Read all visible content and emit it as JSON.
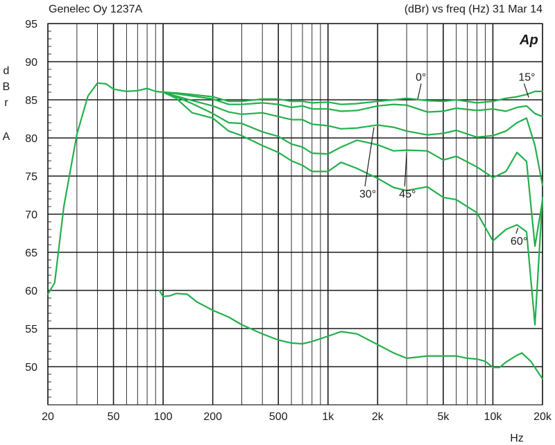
{
  "chart_data": {
    "type": "line",
    "title": "Genelec Oy 1237A",
    "subtitle": "(dBr) vs freq (Hz) 31 Mar 14",
    "logo_text": "Ap",
    "xlabel": "Hz",
    "ylabel": "dBrA",
    "ylabel_letters": [
      "d",
      "B",
      "r",
      "A"
    ],
    "x_scale": "log",
    "xlim": [
      20,
      20000
    ],
    "ylim": [
      45,
      95
    ],
    "grid": true,
    "x_major_ticks": [
      20,
      50,
      100,
      200,
      500,
      1000,
      2000,
      5000,
      10000,
      20000
    ],
    "x_tick_labels": [
      "20",
      "50",
      "100",
      "200",
      "500",
      "1k",
      "2k",
      "5k",
      "10k",
      "20k"
    ],
    "y_ticks": [
      50,
      55,
      60,
      65,
      70,
      75,
      80,
      85,
      90,
      95
    ],
    "y_tick_labels": [
      "50",
      "55",
      "60",
      "65",
      "70",
      "75",
      "80",
      "85",
      "90",
      "95"
    ],
    "line_color": "#22b04b",
    "series": [
      {
        "name": "0°",
        "x": [
          20,
          22,
          25,
          30,
          35,
          40,
          45,
          50,
          60,
          70,
          80,
          90,
          100,
          120,
          150,
          200,
          250,
          300,
          400,
          500,
          600,
          700,
          800,
          1000,
          1200,
          1500,
          2000,
          2500,
          3000,
          4000,
          5000,
          6000,
          8000,
          10000,
          12000,
          14000,
          16000,
          18000,
          20000
        ],
        "y": [
          59.5,
          61,
          71,
          80.5,
          85.5,
          87.2,
          87.1,
          86.4,
          86.1,
          86.2,
          86.5,
          86.1,
          86,
          85.9,
          85.7,
          85.4,
          84.8,
          84.8,
          85.1,
          85.1,
          84.8,
          84.8,
          84.6,
          84.7,
          84.4,
          84.5,
          84.8,
          85.0,
          85.2,
          84.9,
          84.8,
          85.0,
          84.6,
          84.8,
          85.2,
          85.4,
          85.7,
          86.1,
          86.1
        ]
      },
      {
        "name": "15°",
        "x": [
          100,
          120,
          150,
          200,
          250,
          300,
          400,
          500,
          600,
          700,
          800,
          1000,
          1200,
          1500,
          2000,
          2500,
          3000,
          4000,
          5000,
          6000,
          8000,
          10000,
          12000,
          14000,
          16000,
          18000,
          20000
        ],
        "y": [
          86,
          85.8,
          85.5,
          85.1,
          84.4,
          84.4,
          84.6,
          84.4,
          84.0,
          84.2,
          83.8,
          83.8,
          83.5,
          83.6,
          84.2,
          84.4,
          84.3,
          83.4,
          83.5,
          83.9,
          83.6,
          83.8,
          83.5,
          84.0,
          84.2,
          83.2,
          82.8
        ]
      },
      {
        "name": "30°",
        "x": [
          100,
          120,
          150,
          200,
          250,
          300,
          400,
          500,
          600,
          700,
          800,
          1000,
          1200,
          1500,
          2000,
          2500,
          3000,
          4000,
          5000,
          6000,
          8000,
          10000,
          12000,
          14000,
          16000,
          18000,
          20000
        ],
        "y": [
          86,
          85.5,
          84.9,
          84.2,
          83.4,
          83.1,
          83.3,
          82.8,
          82.4,
          82.4,
          81.8,
          81.6,
          81.2,
          81.3,
          81.7,
          81.4,
          80.9,
          80.4,
          80.6,
          81.0,
          80.1,
          80.3,
          80.9,
          82.0,
          82.6,
          79.0,
          73.8
        ]
      },
      {
        "name": "45°",
        "x": [
          100,
          120,
          150,
          200,
          250,
          300,
          400,
          500,
          600,
          700,
          800,
          1000,
          1200,
          1500,
          2000,
          2500,
          3000,
          4000,
          5000,
          6000,
          8000,
          10000,
          12000,
          14000,
          16000,
          18000,
          20000
        ],
        "y": [
          86,
          85.4,
          84.5,
          83.2,
          82.0,
          81.9,
          80.8,
          80.2,
          79.2,
          78.8,
          78.0,
          77.9,
          78.8,
          79.7,
          79.1,
          78.3,
          78.4,
          78.3,
          77.1,
          77.6,
          76.2,
          74.8,
          75.6,
          78.1,
          76.9,
          65.8,
          71.8
        ]
      },
      {
        "name": "60°",
        "x": [
          100,
          120,
          150,
          200,
          250,
          300,
          400,
          500,
          600,
          700,
          800,
          1000,
          1200,
          1500,
          2000,
          2500,
          3000,
          4000,
          5000,
          6000,
          8000,
          10000,
          12000,
          14000,
          16000,
          18000,
          20000
        ],
        "y": [
          86,
          85.2,
          83.3,
          82.6,
          80.9,
          80.3,
          79.0,
          78.1,
          77.0,
          76.4,
          75.6,
          75.6,
          76.8,
          76.0,
          74.7,
          73.5,
          73.1,
          73.6,
          72.2,
          71.9,
          70.2,
          66.5,
          68.0,
          68.6,
          67.7,
          55.5,
          72.2
        ]
      },
      {
        "name": "",
        "x": [
          95,
          100,
          110,
          120,
          140,
          160,
          200,
          250,
          300,
          400,
          500,
          600,
          700,
          800,
          1000,
          1200,
          1500,
          2000,
          2500,
          3000,
          4000,
          5000,
          6000,
          7000,
          8000,
          9000,
          10000,
          11000,
          12000,
          14000,
          15000,
          17000,
          20000
        ],
        "y": [
          60,
          59.2,
          59.3,
          59.6,
          59.5,
          58.5,
          57.4,
          56.5,
          55.5,
          54.3,
          53.5,
          53.1,
          53.0,
          53.3,
          54.0,
          54.6,
          54.3,
          52.9,
          51.8,
          51.1,
          51.4,
          51.4,
          51.4,
          51.1,
          51.0,
          50.7,
          49.9,
          49.9,
          50.6,
          51.5,
          51.8,
          50.7,
          48.4
        ]
      }
    ],
    "annotations": [
      {
        "text": "0°",
        "x": 3400,
        "y": 87.5,
        "point_x": 3500,
        "point_y": 85.1
      },
      {
        "text": "15°",
        "x": 14300,
        "y": 87.5,
        "point_x": 16500,
        "point_y": 85.3
      },
      {
        "text": "30°",
        "x": 1550,
        "y": 72.2,
        "point_x": 1900,
        "point_y": 81.4
      },
      {
        "text": "45°",
        "x": 2700,
        "y": 72.2,
        "point_x": 3000,
        "point_y": 78.1
      },
      {
        "text": "60°",
        "x": 12800,
        "y": 66.0,
        "point_x": 14200,
        "point_y": 68.2
      }
    ]
  }
}
